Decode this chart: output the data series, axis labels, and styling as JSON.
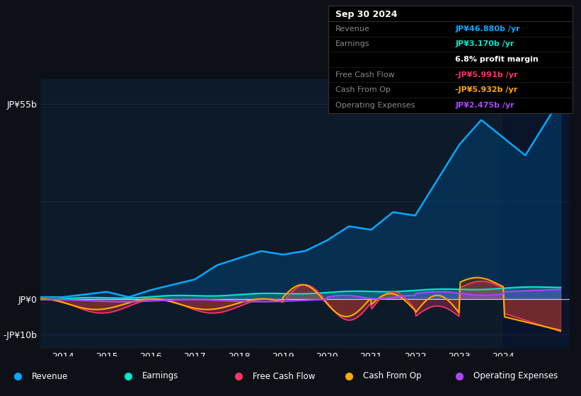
{
  "bg_color": "#0d1117",
  "plot_bg_color": "#0d1a2a",
  "grid_color": "#1e3a5f",
  "zero_line_color": "#cccccc",
  "xticks": [
    2014,
    2015,
    2016,
    2017,
    2018,
    2019,
    2020,
    2021,
    2022,
    2023,
    2024
  ],
  "series": {
    "revenue": {
      "color": "#00aaff",
      "fill_color": "#003d6b",
      "label": "Revenue"
    },
    "earnings": {
      "color": "#00e5cc",
      "label": "Earnings"
    },
    "free_cash_flow": {
      "color": "#ff3366",
      "label": "Free Cash Flow"
    },
    "cash_from_op": {
      "color": "#ffaa00",
      "fill_color": "#5a3a00",
      "label": "Cash From Op"
    },
    "operating_expenses": {
      "color": "#aa44ff",
      "label": "Operating Expenses"
    }
  },
  "tooltip": {
    "date": "Sep 30 2024",
    "bg_color": "#000000",
    "border_color": "#333333",
    "rows": [
      {
        "label": "Revenue",
        "value": "JP¥46.880b /yr",
        "value_color": "#00aaff"
      },
      {
        "label": "Earnings",
        "value": "JP¥3.170b /yr",
        "value_color": "#00e5cc"
      },
      {
        "label": "",
        "value": "6.8% profit margin",
        "value_color": "#ffffff"
      },
      {
        "label": "Free Cash Flow",
        "value": "-JP¥5.991b /yr",
        "value_color": "#ff3366"
      },
      {
        "label": "Cash From Op",
        "value": "-JP¥5.932b /yr",
        "value_color": "#ffaa00"
      },
      {
        "label": "Operating Expenses",
        "value": "JP¥2.475b /yr",
        "value_color": "#aa44ff"
      }
    ]
  },
  "legend_items": [
    {
      "label": "Revenue",
      "color": "#00aaff"
    },
    {
      "label": "Earnings",
      "color": "#00e5cc"
    },
    {
      "label": "Free Cash Flow",
      "color": "#ff3366"
    },
    {
      "label": "Cash From Op",
      "color": "#ffaa00"
    },
    {
      "label": "Operating Expenses",
      "color": "#aa44ff"
    }
  ]
}
